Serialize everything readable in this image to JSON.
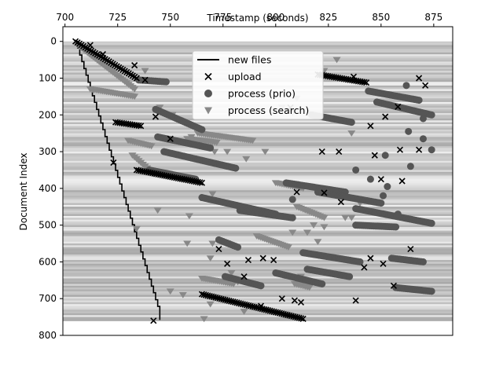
{
  "chart_data": {
    "type": "scatter",
    "xlabel": "Timestamp (seconds)",
    "xaxis_position": "top",
    "ylabel": "Document Index",
    "yaxis_inverted": true,
    "xlim": [
      699,
      884
    ],
    "ylim": [
      800,
      -40
    ],
    "x_ticks": [
      700,
      725,
      750,
      775,
      800,
      825,
      850,
      875
    ],
    "y_ticks": [
      0,
      100,
      200,
      300,
      400,
      500,
      600,
      700,
      800
    ],
    "background": "grayscale horizontal bands (document density heatmap) spanning index 0 to 760",
    "legend": {
      "position": "top-center"
    },
    "series": [
      {
        "name": "new files",
        "marker": "line",
        "color": "#000000",
        "x": [
          705,
          706,
          707,
          708,
          709,
          710,
          711,
          712,
          713,
          714,
          715,
          716,
          717,
          718,
          719,
          720,
          721,
          722,
          723,
          724,
          725,
          726,
          727,
          728,
          729,
          730,
          731,
          732,
          733,
          734,
          735,
          736,
          737,
          738,
          739,
          740,
          741,
          742,
          743,
          744,
          745
        ],
        "y": [
          0,
          18,
          37,
          55,
          74,
          92,
          111,
          129,
          148,
          166,
          185,
          203,
          222,
          240,
          259,
          277,
          296,
          314,
          333,
          351,
          370,
          388,
          407,
          425,
          444,
          462,
          481,
          499,
          518,
          536,
          555,
          573,
          592,
          610,
          629,
          647,
          666,
          684,
          703,
          721,
          758
        ]
      },
      {
        "name": "upload",
        "marker": "x",
        "color": "#000000",
        "groups": [
          {
            "x0": 705,
            "x1": 734,
            "y0": 0,
            "y1": 100
          },
          {
            "x0": 724,
            "x1": 736,
            "y0": 220,
            "y1": 230
          },
          {
            "x0": 734,
            "x1": 765,
            "y0": 350,
            "y1": 385
          },
          {
            "x0": 765,
            "x1": 813,
            "y0": 688,
            "y1": 755
          },
          {
            "x0": 820,
            "x1": 843,
            "y0": 90,
            "y1": 112
          }
        ],
        "scattered": [
          [
            742,
            760
          ],
          [
            723,
            330
          ],
          [
            712,
            10
          ],
          [
            718,
            35
          ],
          [
            733,
            65
          ],
          [
            738,
            105
          ],
          [
            750,
            265
          ],
          [
            743,
            205
          ],
          [
            807,
            180
          ],
          [
            837,
            96
          ],
          [
            868,
            100
          ],
          [
            871,
            120
          ],
          [
            858,
            178
          ],
          [
            845,
            230
          ],
          [
            852,
            205
          ],
          [
            868,
            295
          ],
          [
            859,
            295
          ],
          [
            850,
            375
          ],
          [
            860,
            380
          ],
          [
            845,
            590
          ],
          [
            842,
            615
          ],
          [
            851,
            605
          ],
          [
            864,
            565
          ],
          [
            838,
            705
          ],
          [
            856,
            665
          ],
          [
            810,
            410
          ],
          [
            823,
            412
          ],
          [
            831,
            437
          ],
          [
            822,
            300
          ],
          [
            830,
            300
          ],
          [
            847,
            310
          ],
          [
            787,
            595
          ],
          [
            794,
            590
          ],
          [
            785,
            640
          ],
          [
            812,
            710
          ],
          [
            809,
            705
          ],
          [
            803,
            700
          ],
          [
            793,
            720
          ],
          [
            799,
            595
          ],
          [
            777,
            605
          ],
          [
            773,
            565
          ]
        ]
      },
      {
        "name": "process (prio)",
        "marker": "circle",
        "color": "#555555",
        "groups": [
          {
            "x0": 735,
            "x1": 748,
            "y0": 105,
            "y1": 110
          },
          {
            "x0": 743,
            "x1": 765,
            "y0": 185,
            "y1": 240
          },
          {
            "x0": 744,
            "x1": 769,
            "y0": 260,
            "y1": 290
          },
          {
            "x0": 747,
            "x1": 781,
            "y0": 300,
            "y1": 345
          },
          {
            "x0": 740,
            "x1": 762,
            "y0": 350,
            "y1": 375
          },
          {
            "x0": 765,
            "x1": 800,
            "y0": 425,
            "y1": 470
          },
          {
            "x0": 773,
            "x1": 782,
            "y0": 540,
            "y1": 560
          },
          {
            "x0": 776,
            "x1": 793,
            "y0": 640,
            "y1": 665
          },
          {
            "x0": 783,
            "x1": 808,
            "y0": 460,
            "y1": 480
          },
          {
            "x0": 805,
            "x1": 833,
            "y0": 385,
            "y1": 410
          },
          {
            "x0": 817,
            "x1": 836,
            "y0": 200,
            "y1": 220
          },
          {
            "x0": 820,
            "x1": 850,
            "y0": 410,
            "y1": 440
          },
          {
            "x0": 838,
            "x1": 874,
            "y0": 455,
            "y1": 495
          },
          {
            "x0": 838,
            "x1": 857,
            "y0": 500,
            "y1": 505
          },
          {
            "x0": 844,
            "x1": 868,
            "y0": 135,
            "y1": 160
          },
          {
            "x0": 848,
            "x1": 874,
            "y0": 165,
            "y1": 200
          },
          {
            "x0": 813,
            "x1": 840,
            "y0": 575,
            "y1": 600
          },
          {
            "x0": 815,
            "x1": 835,
            "y0": 620,
            "y1": 640
          },
          {
            "x0": 800,
            "x1": 822,
            "y0": 630,
            "y1": 660
          },
          {
            "x0": 855,
            "x1": 870,
            "y0": 590,
            "y1": 600
          },
          {
            "x0": 857,
            "x1": 874,
            "y0": 670,
            "y1": 680
          }
        ],
        "scattered": [
          [
            808,
            430
          ],
          [
            838,
            350
          ],
          [
            845,
            375
          ],
          [
            851,
            420
          ],
          [
            863,
            245
          ],
          [
            870,
            265
          ],
          [
            874,
            295
          ],
          [
            852,
            310
          ],
          [
            864,
            340
          ],
          [
            870,
            210
          ],
          [
            862,
            120
          ],
          [
            853,
            395
          ],
          [
            858,
            470
          ]
        ]
      },
      {
        "name": "process (search)",
        "marker": "triangle-down",
        "color": "#888888",
        "groups": [
          {
            "x0": 706,
            "x1": 733,
            "y0": 10,
            "y1": 130
          },
          {
            "x0": 712,
            "x1": 733,
            "y0": 130,
            "y1": 150
          },
          {
            "x0": 730,
            "x1": 741,
            "y0": 270,
            "y1": 285
          },
          {
            "x0": 732,
            "x1": 742,
            "y0": 310,
            "y1": 360
          },
          {
            "x0": 758,
            "x1": 772,
            "y0": 265,
            "y1": 275
          },
          {
            "x0": 763,
            "x1": 789,
            "y0": 250,
            "y1": 270
          },
          {
            "x0": 765,
            "x1": 780,
            "y0": 645,
            "y1": 660
          },
          {
            "x0": 791,
            "x1": 806,
            "y0": 530,
            "y1": 560
          },
          {
            "x0": 810,
            "x1": 823,
            "y0": 450,
            "y1": 480
          },
          {
            "x0": 809,
            "x1": 816,
            "y0": 660,
            "y1": 670
          },
          {
            "x0": 800,
            "x1": 813,
            "y0": 385,
            "y1": 400
          }
        ],
        "scattered": [
          [
            738,
            80
          ],
          [
            745,
            180
          ],
          [
            751,
            200
          ],
          [
            760,
            260
          ],
          [
            771,
            300
          ],
          [
            759,
            475
          ],
          [
            744,
            460
          ],
          [
            734,
            510
          ],
          [
            758,
            550
          ],
          [
            769,
            590
          ],
          [
            770,
            550
          ],
          [
            756,
            690
          ],
          [
            779,
            630
          ],
          [
            782,
            655
          ],
          [
            785,
            735
          ],
          [
            766,
            755
          ],
          [
            750,
            680
          ],
          [
            769,
            715
          ],
          [
            812,
            640
          ],
          [
            820,
            545
          ],
          [
            815,
            520
          ],
          [
            818,
            500
          ],
          [
            808,
            520
          ],
          [
            823,
            505
          ],
          [
            833,
            480
          ],
          [
            836,
            480
          ],
          [
            840,
            440
          ],
          [
            803,
            180
          ],
          [
            808,
            195
          ],
          [
            829,
            50
          ],
          [
            823,
            80
          ],
          [
            836,
            250
          ],
          [
            810,
            155
          ],
          [
            786,
            320
          ],
          [
            795,
            300
          ],
          [
            777,
            300
          ],
          [
            770,
            415
          ]
        ]
      }
    ]
  }
}
